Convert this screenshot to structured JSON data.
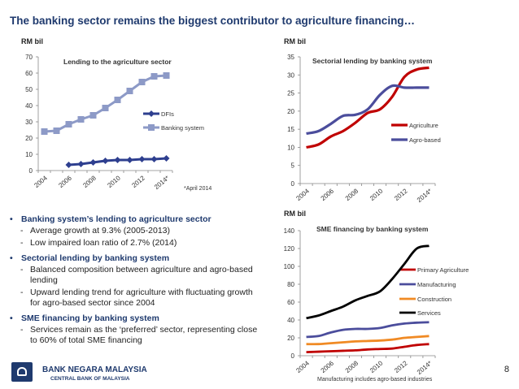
{
  "slide": {
    "title": "The banking sector remains the biggest contributor to agriculture financing…",
    "page_number": "8"
  },
  "footer": {
    "bank_name": "BANK NEGARA MALAYSIA",
    "bank_subtitle": "CENTRAL BANK OF MALAYSIA"
  },
  "bullets": [
    {
      "heading": "Banking system’s lending to agriculture sector",
      "points": [
        "Average growth at 9.3% (2005-2013)",
        "Low impaired loan ratio of 2.7% (2014)"
      ]
    },
    {
      "heading": "Sectorial lending by banking system",
      "points": [
        "Balanced composition between agriculture and agro-based lending",
        "Upward lending trend for agriculture with fluctuating growth for agro-based sector since 2004"
      ]
    },
    {
      "heading": "SME financing by banking system",
      "points": [
        "Services remain as the ‘preferred’ sector, representing close to 60% of total SME financing"
      ]
    }
  ],
  "colors": {
    "title": "#1f3a6e",
    "dfi": "#2e3f8f",
    "banking": "#8d9ac7",
    "agriculture": "#c00000",
    "agro": "#4b4d9c",
    "manufacturing": "#4b4d9c",
    "construction": "#f08a24",
    "services": "#000000"
  },
  "chart_data": [
    {
      "type": "line",
      "title": "Lending to the agriculture sector",
      "ylabel": "RM bil",
      "ylim": [
        0,
        70
      ],
      "yticks": [
        0,
        10,
        20,
        30,
        40,
        50,
        60,
        70
      ],
      "x": [
        "2004",
        "2005",
        "2006",
        "2007",
        "2008",
        "2009",
        "2010",
        "2011",
        "2012",
        "2013",
        "2014*"
      ],
      "xtick_labels": [
        "2004",
        "2006",
        "2008",
        "2010",
        "2012",
        "2014*"
      ],
      "note": "*April 2014",
      "series": [
        {
          "name": "DFIs",
          "marker": "diamond",
          "values": [
            null,
            null,
            3.5,
            4,
            5,
            6,
            6.5,
            6.5,
            7,
            7,
            7.5
          ]
        },
        {
          "name": "Banking system",
          "marker": "square",
          "values": [
            24,
            24.5,
            28.5,
            31.5,
            34,
            38.5,
            43.5,
            49,
            54.5,
            58,
            58.5
          ]
        }
      ]
    },
    {
      "type": "line",
      "title": "Sectorial lending by banking system",
      "ylabel": "RM bil",
      "ylim": [
        0,
        35
      ],
      "yticks": [
        0,
        5,
        10,
        15,
        20,
        25,
        30,
        35
      ],
      "x": [
        "2004",
        "2005",
        "2006",
        "2007",
        "2008",
        "2009",
        "2010",
        "2011",
        "2012",
        "2013",
        "2014*"
      ],
      "xtick_labels": [
        "2004",
        "2006",
        "2008",
        "2010",
        "2012",
        "2014*"
      ],
      "series": [
        {
          "name": "Agriculture",
          "values": [
            10,
            10.8,
            13,
            14.5,
            16.8,
            19.5,
            20.5,
            24,
            29.5,
            31.5,
            32
          ]
        },
        {
          "name": "Agro-based",
          "values": [
            13.8,
            14.5,
            16.5,
            18.7,
            19,
            20.5,
            24.5,
            27,
            26.5,
            26.5,
            26.5
          ]
        }
      ]
    },
    {
      "type": "line",
      "title": "SME financing by banking system",
      "ylabel": "RM bil",
      "ylim": [
        0,
        140
      ],
      "yticks": [
        0,
        20,
        40,
        60,
        80,
        100,
        120,
        140
      ],
      "x": [
        "2004",
        "2005",
        "2006",
        "2007",
        "2008",
        "2009",
        "2010",
        "2011",
        "2012",
        "2013",
        "2014*"
      ],
      "xtick_labels": [
        "2004",
        "2006",
        "2008",
        "2010",
        "2012",
        "2014*"
      ],
      "note": "Manufacturing includes agro-based industries",
      "series": [
        {
          "name": "Primary Agriculture",
          "values": [
            4,
            4.5,
            5,
            5.5,
            6,
            7,
            7.5,
            8,
            10,
            12,
            13
          ]
        },
        {
          "name": "Manufacturing",
          "values": [
            21,
            22,
            26,
            29,
            30,
            30,
            31,
            34,
            36,
            37,
            37.5
          ]
        },
        {
          "name": "Construction",
          "values": [
            13,
            13,
            14,
            15,
            16,
            16.5,
            17,
            18,
            20,
            21,
            22
          ]
        },
        {
          "name": "Services",
          "values": [
            42,
            45,
            50,
            55,
            62,
            67,
            72,
            86,
            103,
            120,
            123
          ]
        }
      ]
    }
  ]
}
